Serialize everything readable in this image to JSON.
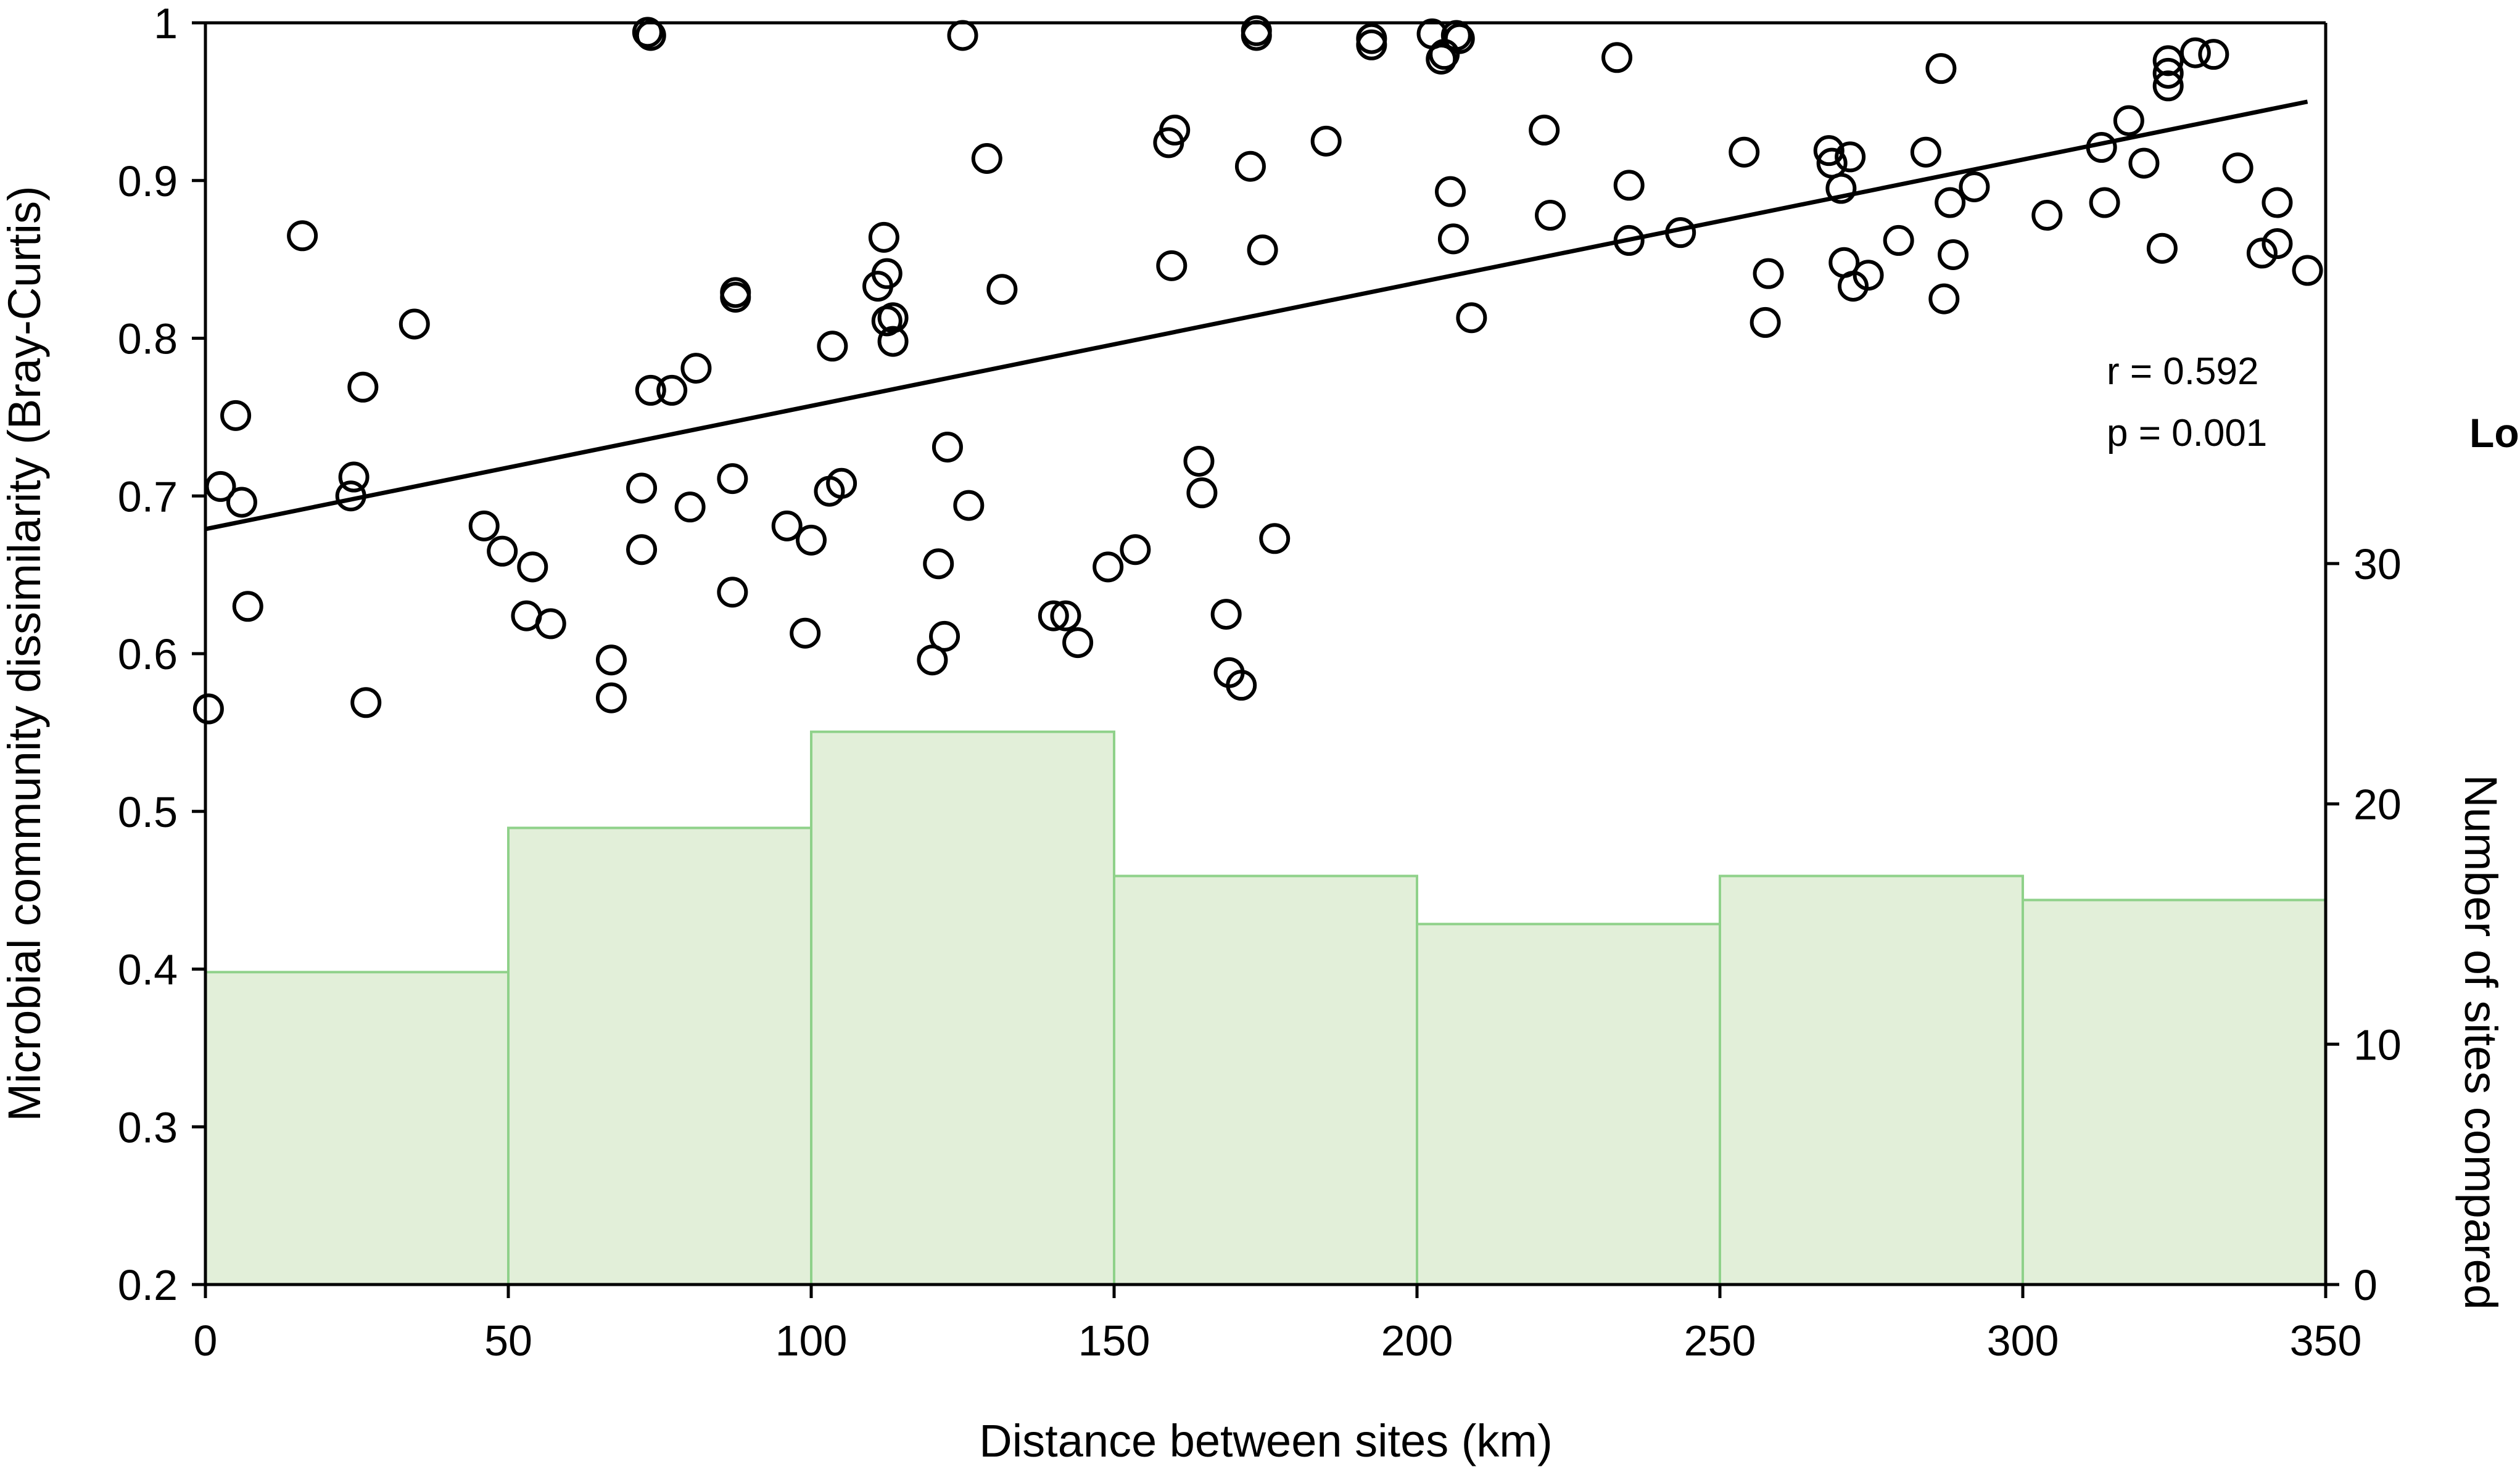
{
  "chart_data": {
    "type": "scatter",
    "xlabel": "Distance between sites (km)",
    "ylabel": "Microbial community dissimilarity (Bray-Curtis)",
    "y2label": "Number of sites compared",
    "xlim": [
      0,
      350
    ],
    "ylim": [
      0.2,
      1.0
    ],
    "y2lim": [
      0,
      52.5
    ],
    "x_ticks": [
      0,
      50,
      100,
      150,
      200,
      250,
      300,
      350
    ],
    "y_ticks": [
      0.2,
      0.3,
      0.4,
      0.5,
      0.6,
      0.7,
      0.8,
      0.9,
      1
    ],
    "y2_ticks": [
      0,
      10,
      20,
      30
    ],
    "grid": false,
    "series": [
      {
        "type": "histogram",
        "color": "#e2efd9",
        "edge_color": "#8fd18a",
        "bins": [
          {
            "x0": 0,
            "x1": 50,
            "count": 13
          },
          {
            "x0": 50,
            "x1": 100,
            "count": 19
          },
          {
            "x0": 100,
            "x1": 150,
            "count": 23
          },
          {
            "x0": 150,
            "x1": 200,
            "count": 17
          },
          {
            "x0": 200,
            "x1": 250,
            "count": 15
          },
          {
            "x0": 250,
            "x1": 300,
            "count": 17
          },
          {
            "x0": 300,
            "x1": 350,
            "count": 16
          }
        ]
      },
      {
        "type": "scatter",
        "marker": "open-circle",
        "color": "#000000",
        "points": [
          [
            0.5,
            0.565
          ],
          [
            2.5,
            0.706
          ],
          [
            5,
            0.751
          ],
          [
            6,
            0.696
          ],
          [
            7,
            0.63
          ],
          [
            16,
            0.865
          ],
          [
            24,
            0.7
          ],
          [
            24.5,
            0.712
          ],
          [
            26,
            0.769
          ],
          [
            26.5,
            0.569
          ],
          [
            34.5,
            0.809
          ],
          [
            46,
            0.681
          ],
          [
            49,
            0.665
          ],
          [
            54,
            0.655
          ],
          [
            53,
            0.624
          ],
          [
            57,
            0.619
          ],
          [
            67,
            0.596
          ],
          [
            67,
            0.572
          ],
          [
            72,
            0.705
          ],
          [
            72,
            0.666
          ],
          [
            73,
            0.994
          ],
          [
            73.5,
            0.767
          ],
          [
            73.5,
            0.992
          ],
          [
            77,
            0.767
          ],
          [
            80,
            0.693
          ],
          [
            81,
            0.781
          ],
          [
            87,
            0.711
          ],
          [
            87,
            0.639
          ],
          [
            87.5,
            0.829
          ],
          [
            87.5,
            0.826
          ],
          [
            96,
            0.681
          ],
          [
            99,
            0.613
          ],
          [
            100,
            0.672
          ],
          [
            103,
            0.703
          ],
          [
            103.5,
            0.795
          ],
          [
            105,
            0.708
          ],
          [
            111,
            0.833
          ],
          [
            112,
            0.864
          ],
          [
            112.5,
            0.841
          ],
          [
            112.5,
            0.811
          ],
          [
            113.5,
            0.813
          ],
          [
            113.5,
            0.798
          ],
          [
            120,
            0.596
          ],
          [
            121,
            0.657
          ],
          [
            122,
            0.611
          ],
          [
            122.5,
            0.731
          ],
          [
            125,
            0.992
          ],
          [
            126,
            0.694
          ],
          [
            129,
            0.914
          ],
          [
            131.5,
            0.831
          ],
          [
            140,
            0.624
          ],
          [
            142,
            0.624
          ],
          [
            144,
            0.607
          ],
          [
            149,
            0.655
          ],
          [
            153.5,
            0.666
          ],
          [
            159,
            0.924
          ],
          [
            159.5,
            0.846
          ],
          [
            160,
            0.932
          ],
          [
            164,
            0.722
          ],
          [
            164.5,
            0.702
          ],
          [
            168.5,
            0.625
          ],
          [
            169,
            0.588
          ],
          [
            171,
            0.58
          ],
          [
            172.5,
            0.909
          ],
          [
            173.5,
            0.995
          ],
          [
            173.5,
            0.992
          ],
          [
            174.5,
            0.856
          ],
          [
            176.5,
            0.673
          ],
          [
            185,
            0.925
          ],
          [
            192.5,
            0.99
          ],
          [
            192.5,
            0.986
          ],
          [
            202.5,
            0.993
          ],
          [
            204,
            0.977
          ],
          [
            204.5,
            0.98
          ],
          [
            205.5,
            0.893
          ],
          [
            206,
            0.863
          ],
          [
            206.5,
            0.992
          ],
          [
            207,
            0.99
          ],
          [
            209,
            0.813
          ],
          [
            221,
            0.932
          ],
          [
            222,
            0.878
          ],
          [
            233,
            0.978
          ],
          [
            235,
            0.897
          ],
          [
            235,
            0.862
          ],
          [
            243.5,
            0.867
          ],
          [
            254,
            0.918
          ],
          [
            257.5,
            0.81
          ],
          [
            258,
            0.841
          ],
          [
            268,
            0.919
          ],
          [
            268.5,
            0.911
          ],
          [
            270,
            0.895
          ],
          [
            270.5,
            0.848
          ],
          [
            271.5,
            0.915
          ],
          [
            272,
            0.833
          ],
          [
            274.5,
            0.84
          ],
          [
            279.5,
            0.862
          ],
          [
            284,
            0.918
          ],
          [
            286.5,
            0.971
          ],
          [
            287,
            0.825
          ],
          [
            288,
            0.886
          ],
          [
            288.5,
            0.853
          ],
          [
            292,
            0.896
          ],
          [
            304,
            0.878
          ],
          [
            313,
            0.921
          ],
          [
            313.5,
            0.886
          ],
          [
            317.5,
            0.938
          ],
          [
            320,
            0.911
          ],
          [
            323,
            0.857
          ],
          [
            324,
            0.976
          ],
          [
            324,
            0.968
          ],
          [
            324,
            0.96
          ],
          [
            328.5,
            0.981
          ],
          [
            331.5,
            0.98
          ],
          [
            335.5,
            0.908
          ],
          [
            339.5,
            0.854
          ],
          [
            342,
            0.886
          ],
          [
            342,
            0.86
          ],
          [
            347,
            0.843
          ]
        ]
      },
      {
        "type": "trendline",
        "color": "#000000",
        "x": [
          0,
          347
        ],
        "y": [
          0.679,
          0.95
        ]
      }
    ],
    "annotations": [
      "r = 0.592",
      "p = 0.001"
    ],
    "partial_label": "Lo"
  }
}
